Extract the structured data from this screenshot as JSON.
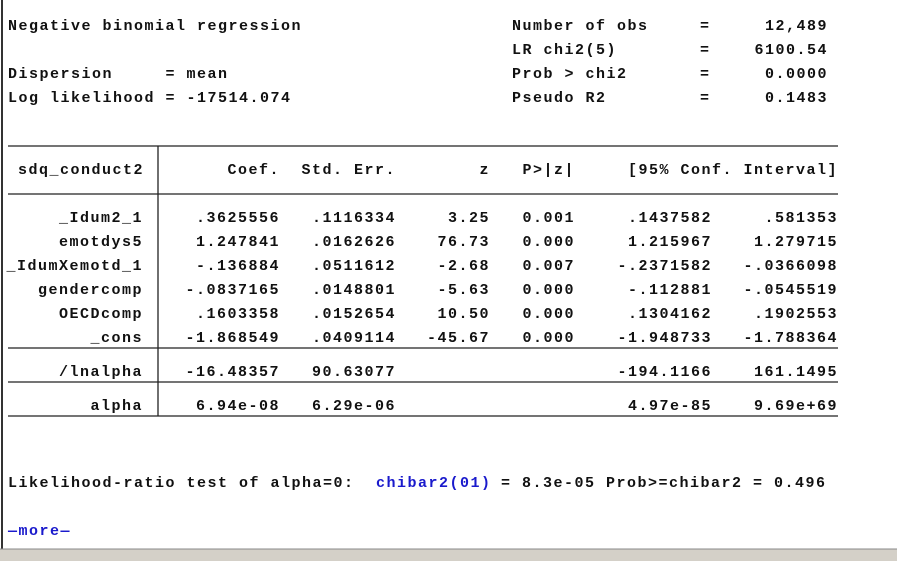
{
  "header": {
    "left": [
      {
        "row": 0,
        "text": "Negative binomial regression"
      },
      {
        "row": 2,
        "text": "Dispersion     = mean"
      },
      {
        "row": 3,
        "text": "Log likelihood = -17514.074"
      }
    ],
    "stats": [
      {
        "label": "Number of obs",
        "sep": "=",
        "value": "12,489"
      },
      {
        "label": "LR chi2(5)",
        "sep": "=",
        "value": "6100.54"
      },
      {
        "label": "Prob > chi2",
        "sep": "=",
        "value": "0.0000"
      },
      {
        "label": "Pseudo R2",
        "sep": "=",
        "value": "0.1483"
      }
    ]
  },
  "table": {
    "columns": [
      "sdq_conduct2",
      "Coef.",
      "Std. Err.",
      "z",
      "P>|z|",
      "[95% Conf. Interval]"
    ],
    "sections": [
      [
        [
          "_Idum2_1",
          ".3625556",
          ".1116334",
          "3.25",
          "0.001",
          ".1437582",
          ".581353"
        ],
        [
          "emotdys5",
          "1.247841",
          ".0162626",
          "76.73",
          "0.000",
          "1.215967",
          "1.279715"
        ],
        [
          "_IdumXemotd_1",
          "-.136884",
          ".0511612",
          "-2.68",
          "0.007",
          "-.2371582",
          "-.0366098"
        ],
        [
          "gendercomp",
          "-.0837165",
          ".0148801",
          "-5.63",
          "0.000",
          "-.112881",
          "-.0545519"
        ],
        [
          "OECDcomp",
          ".1603358",
          ".0152654",
          "10.50",
          "0.000",
          ".1304162",
          ".1902553"
        ],
        [
          "_cons",
          "-1.868549",
          ".0409114",
          "-45.67",
          "0.000",
          "-1.948733",
          "-1.788364"
        ]
      ],
      [
        [
          "/lnalpha",
          "-16.48357",
          "90.63077",
          null,
          null,
          "-194.1166",
          "161.1495"
        ]
      ],
      [
        [
          "alpha",
          "6.94e-08",
          "6.29e-06",
          null,
          null,
          "4.97e-85",
          "9.69e+69"
        ]
      ]
    ]
  },
  "footer": {
    "lr_test": "Likelihood-ratio test of alpha=0:",
    "chibar_link": "chibar2(01)",
    "lr_result": "= 8.3e-05 Prob>=chibar2 = 0.496",
    "more": "—more—"
  }
}
